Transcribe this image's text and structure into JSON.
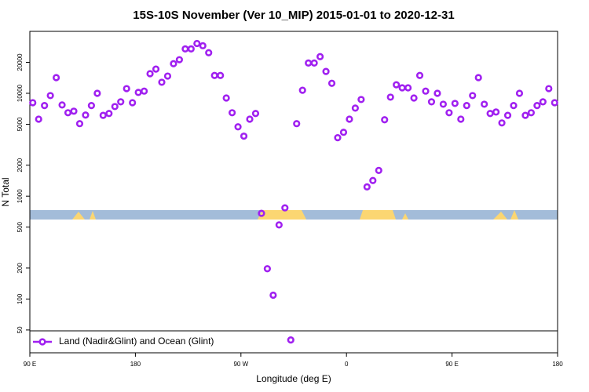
{
  "chart_data": {
    "type": "scatter",
    "log_y": true,
    "title": "15S-10S November (Ver 10_MIP)   2015-01-01 to 2020-12-31",
    "xlabel": "Longitude (deg E)",
    "ylabel": "N Total",
    "xlim": [
      90,
      540
    ],
    "ylim": [
      30,
      40000
    ],
    "xticks": [
      {
        "value": 90,
        "label": "90 E"
      },
      180,
      {
        "value": 270,
        "label": "90 W"
      },
      {
        "value": 360,
        "label": "0"
      },
      {
        "value": 450,
        "label": "90 E"
      },
      {
        "value": 540,
        "label": "180"
      }
    ],
    "yticks": [
      50,
      100,
      200,
      500,
      1000,
      2000,
      5000,
      10000,
      20000
    ],
    "series": [
      {
        "name": "Land (Nadir&Glint) and Ocean (Glint)",
        "color": "#a020f0",
        "x": [
          92.5,
          97.5,
          102.5,
          107.5,
          112.5,
          117.5,
          122.5,
          127.5,
          132.5,
          137.5,
          142.5,
          147.5,
          152.5,
          157.5,
          162.5,
          167.5,
          172.5,
          177.5,
          182.5,
          187.5,
          192.5,
          197.5,
          202.5,
          207.5,
          212.5,
          217.5,
          222.5,
          227.5,
          232.5,
          237.5,
          242.5,
          247.5,
          252.5,
          257.5,
          262.5,
          267.5,
          272.5,
          277.5,
          282.5,
          287.5,
          292.5,
          297.5,
          302.5,
          307.5,
          312.5,
          317.5,
          322.5,
          327.5,
          332.5,
          337.5,
          342.5,
          347.5,
          352.5,
          357.5,
          362.5,
          367.5,
          372.5,
          377.5,
          382.5,
          387.5,
          392.5,
          397.5,
          402.5,
          407.5,
          412.5,
          417.5,
          422.5,
          427.5,
          432.5,
          437.5,
          442.5,
          447.5,
          452.5,
          457.5,
          462.5,
          467.5,
          472.5,
          477.5,
          482.5,
          487.5,
          492.5,
          497.5,
          502.5,
          507.5,
          512.5,
          517.5,
          522.5,
          527.5,
          532.5,
          537.5
        ],
        "values": [
          8100,
          5600,
          7600,
          9500,
          14200,
          7700,
          6470,
          6700,
          5070,
          6140,
          7600,
          10000,
          6100,
          6360,
          7430,
          8260,
          11100,
          8100,
          10200,
          10500,
          15500,
          17200,
          12800,
          14700,
          19400,
          21200,
          27000,
          27000,
          30500,
          29000,
          24800,
          14900,
          14900,
          9000,
          6470,
          4720,
          3830,
          5600,
          6360,
          681,
          197,
          109,
          525,
          770,
          40,
          5070,
          10700,
          19700,
          19700,
          22700,
          16300,
          12500,
          3700,
          4180,
          5600,
          7180,
          8700,
          1230,
          1420,
          1780,
          5530,
          9170,
          12100,
          11300,
          11300,
          9000,
          14900,
          10500,
          8260,
          10000,
          7830,
          6470,
          7970,
          5600,
          7600,
          9500,
          14200,
          7830,
          6360,
          6580,
          5150,
          6100,
          7600,
          10000,
          6100,
          6470,
          7600,
          8260,
          11100,
          8100
        ]
      }
    ]
  }
}
